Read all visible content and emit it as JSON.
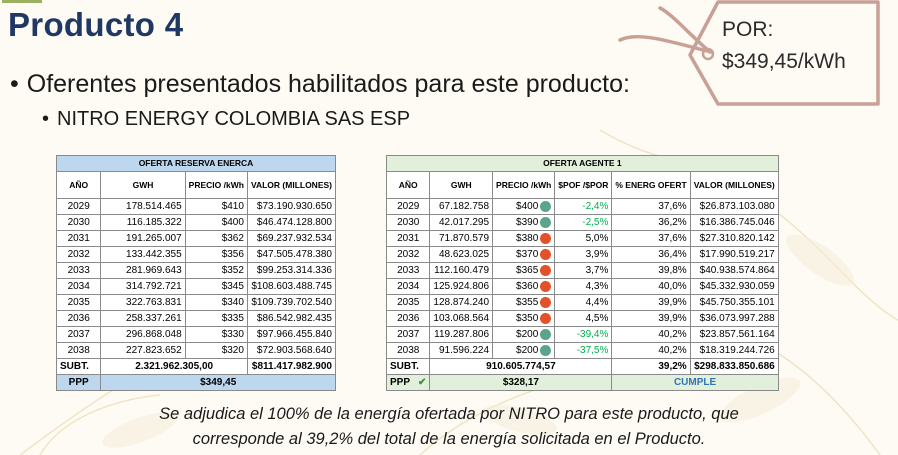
{
  "title": "Producto 4",
  "price_tag": {
    "line1": "POR:",
    "line2": "$349,45/kWh"
  },
  "bullets": {
    "main": "Oferentes presentados habilitados para este producto:",
    "sub": "NITRO ENERGY COLOMBIA SAS ESP"
  },
  "table_left": {
    "caption": "OFERTA RESERVA ENERCA",
    "headers": [
      "AÑO",
      "GWH",
      "PRECIO /kWh",
      "VALOR (MILLONES)"
    ],
    "rows": [
      [
        "2029",
        "178.514.465",
        "$410",
        "$73.190.930.650"
      ],
      [
        "2030",
        "116.185.322",
        "$400",
        "$46.474.128.800"
      ],
      [
        "2031",
        "191.265.007",
        "$362",
        "$69.237.932.534"
      ],
      [
        "2032",
        "133.442.355",
        "$356",
        "$47.505.478.380"
      ],
      [
        "2033",
        "281.969.643",
        "$352",
        "$99.253.314.336"
      ],
      [
        "2034",
        "314.792.721",
        "$345",
        "$108.603.488.745"
      ],
      [
        "2035",
        "322.763.831",
        "$340",
        "$109.739.702.540"
      ],
      [
        "2036",
        "258.337.261",
        "$335",
        "$86.542.982.435"
      ],
      [
        "2037",
        "296.868.048",
        "$330",
        "$97.966.455.840"
      ],
      [
        "2038",
        "227.823.652",
        "$320",
        "$72.903.568.640"
      ]
    ],
    "subtotal": {
      "label": "SUBT.",
      "gwh": "2.321.962.305,00",
      "valor": "$811.417.982.900"
    },
    "ppp": {
      "label": "PPP",
      "value": "$349,45"
    }
  },
  "table_right": {
    "caption": "OFERTA AGENTE 1",
    "headers": [
      "AÑO",
      "GWH",
      "PRECIO /kWh",
      "$POF /$POR",
      "% ENERG OFERT",
      "VALOR (MILLONES)"
    ],
    "rows": [
      [
        "2029",
        "67.182.758",
        "$400",
        "-2,4%",
        "37,6%",
        "$26.873.103.080"
      ],
      [
        "2030",
        "42.017.295",
        "$390",
        "-2,5%",
        "36,2%",
        "$16.386.745.046"
      ],
      [
        "2031",
        "71.870.579",
        "$380",
        "5,0%",
        "37,6%",
        "$27.310.820.142"
      ],
      [
        "2032",
        "48.623.025",
        "$370",
        "3,9%",
        "36,4%",
        "$17.990.519.217"
      ],
      [
        "2033",
        "112.160.479",
        "$365",
        "3,7%",
        "39,8%",
        "$40.938.574.864"
      ],
      [
        "2034",
        "125.924.806",
        "$360",
        "4,3%",
        "40,0%",
        "$45.332.930.059"
      ],
      [
        "2035",
        "128.874.240",
        "$355",
        "4,4%",
        "39,9%",
        "$45.750.355.101"
      ],
      [
        "2036",
        "103.068.564",
        "$350",
        "4,5%",
        "39,9%",
        "$36.073.997.288"
      ],
      [
        "2037",
        "119.287.806",
        "$200",
        "-39,4%",
        "40,2%",
        "$23.857.561.164"
      ],
      [
        "2038",
        "91.596.224",
        "$200",
        "-37,5%",
        "40,2%",
        "$18.319.244.726"
      ]
    ],
    "indicators": [
      "green",
      "green",
      "red",
      "red",
      "red",
      "red",
      "red",
      "red",
      "green",
      "green"
    ],
    "subtotal": {
      "label": "SUBT.",
      "gwh": "910.605.774,57",
      "pct": "39,2%",
      "valor": "$298.833.850.686"
    },
    "ppp": {
      "label": "PPP",
      "value": "$328,17",
      "status": "CUMPLE"
    }
  },
  "footer": {
    "line1": "Se adjudica el 100% de la energía ofertada por NITRO para este producto, que",
    "line2": "corresponde al 39,2% del total de la energía solicitada en el Producto."
  },
  "colors": {
    "title": "#1f3864",
    "left_caption_bg": "#bdd7ee",
    "right_caption_bg": "#e2efda",
    "negative_text": "#00b050",
    "indicator_green": "#5aa489",
    "indicator_red": "#e2512a",
    "tag_outline": "#c9a096"
  }
}
